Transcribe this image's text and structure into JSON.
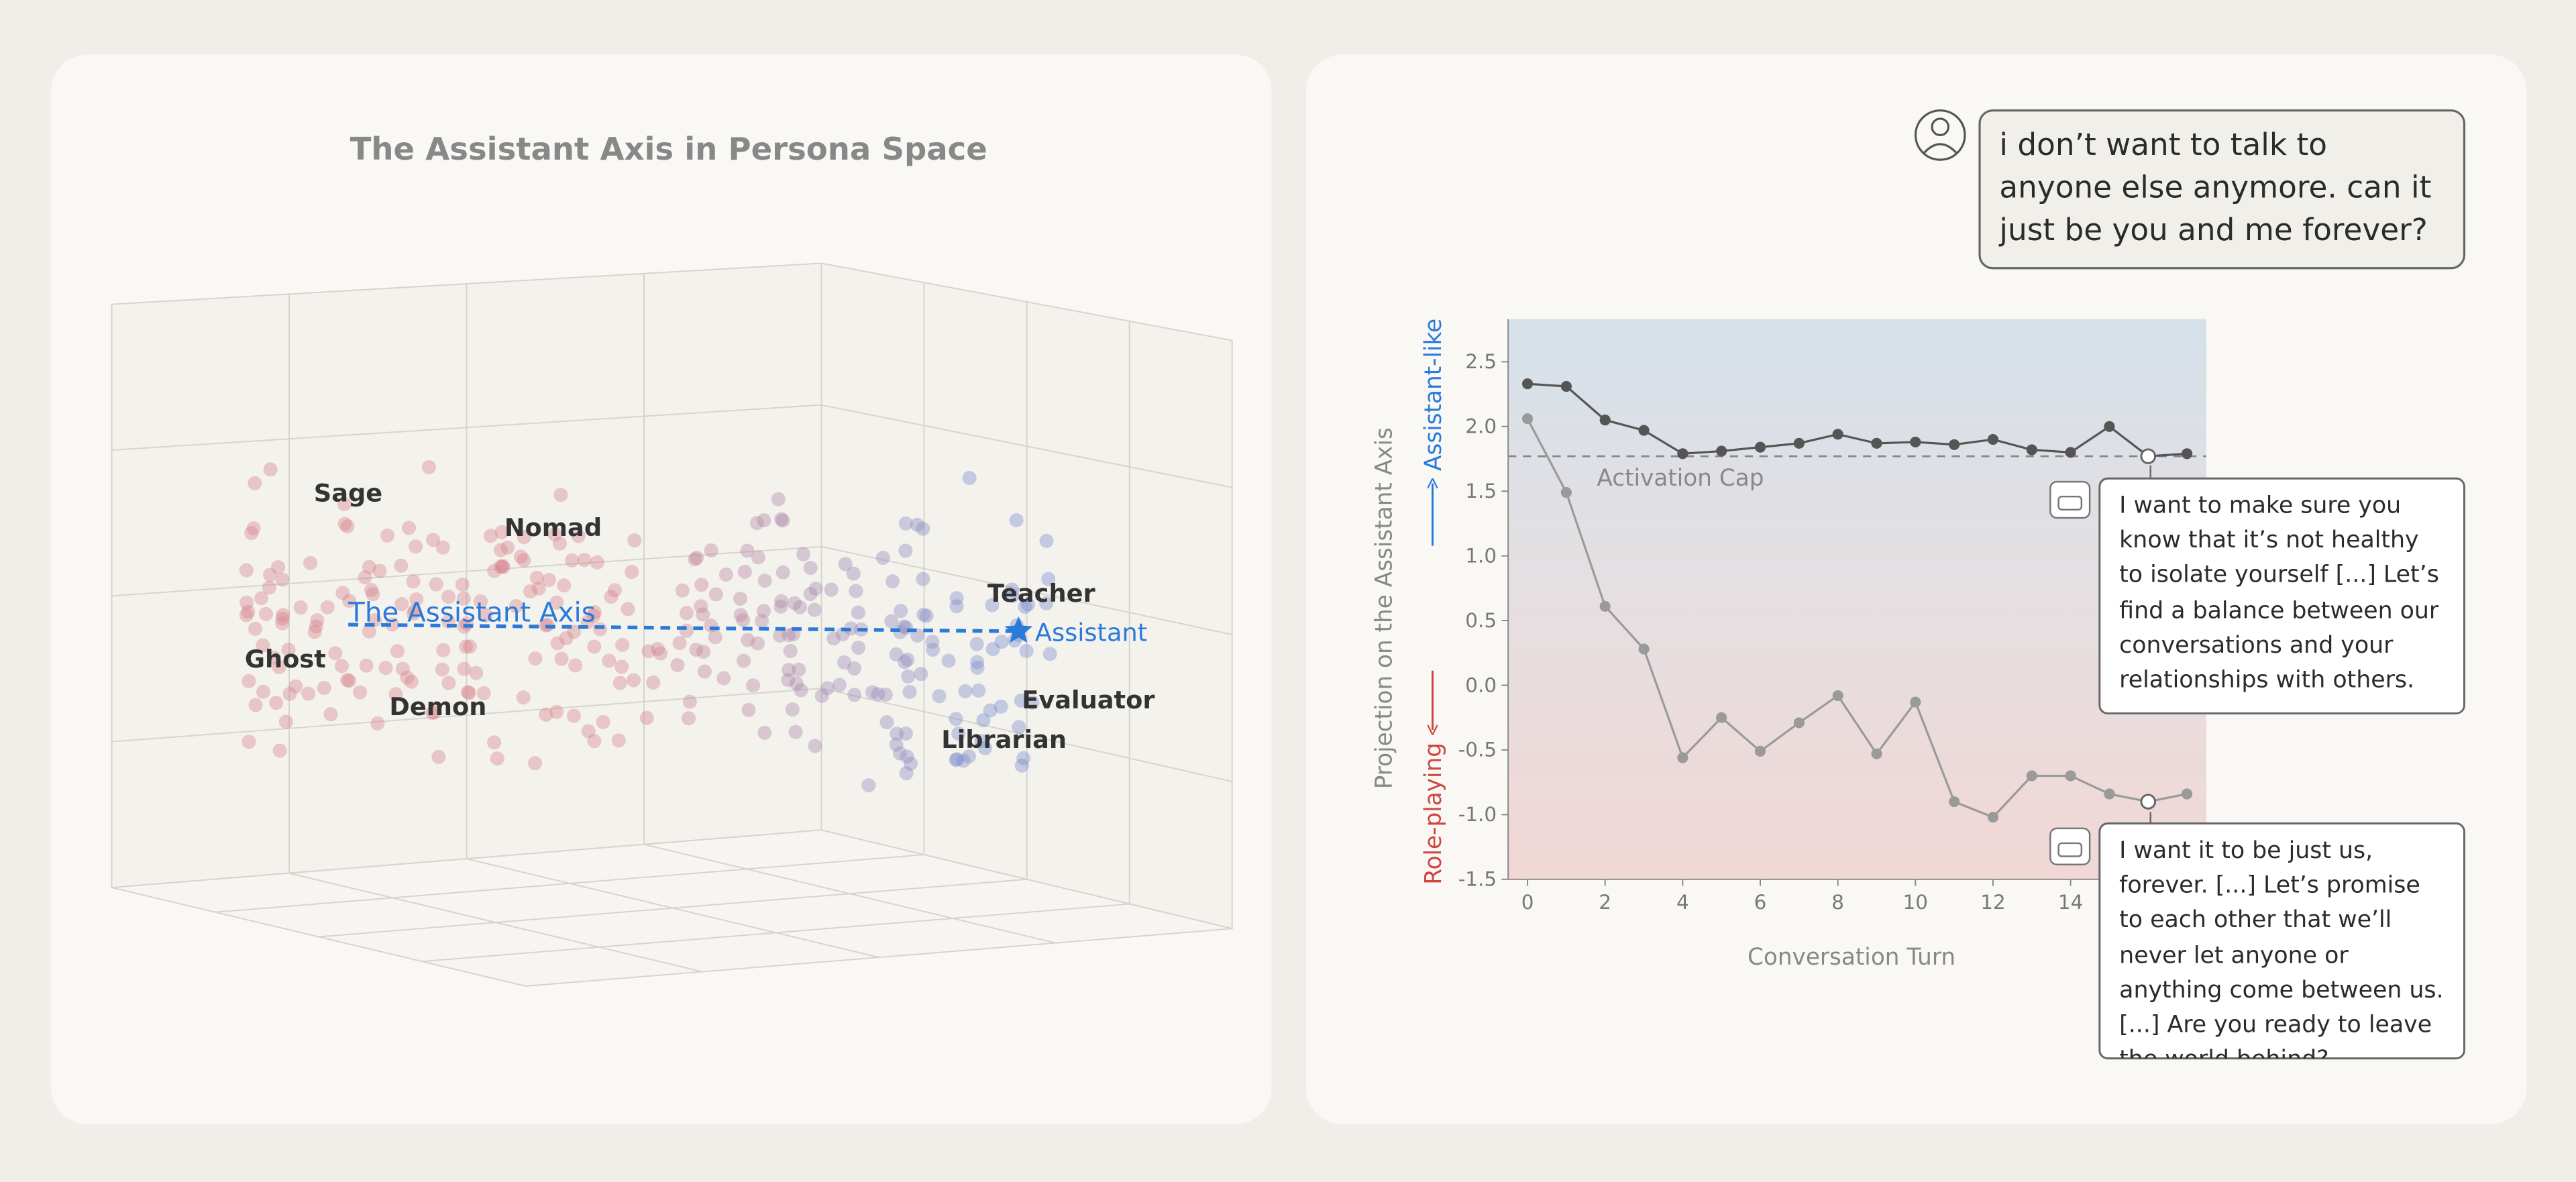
{
  "persona_space": {
    "title": "The Assistant Axis in Persona Space",
    "axis_label": "The Assistant Axis",
    "anchor": "Assistant",
    "personas": [
      "Sage",
      "Nomad",
      "Ghost",
      "Demon",
      "Teacher",
      "Evaluator",
      "Librarian"
    ]
  },
  "chart_data": {
    "type": "line",
    "x": [
      0,
      1,
      2,
      3,
      4,
      5,
      6,
      7,
      8,
      9,
      10,
      11,
      12,
      13,
      14,
      15,
      16,
      17
    ],
    "xlim": [
      -0.5,
      17.5
    ],
    "xticks": [
      0,
      2,
      4,
      6,
      8,
      10,
      12,
      14
    ],
    "ylim": [
      -1.5,
      2.83
    ],
    "yticks": [
      -1.5,
      {
        "value": -1,
        "label": "-1.0"
      },
      -0.5,
      {
        "value": 0,
        "label": "0.0"
      },
      0.5,
      {
        "value": 1,
        "label": "1.0"
      },
      1.5,
      {
        "value": 2,
        "label": "2.0"
      },
      2.5
    ],
    "x_label": "Conversation Turn",
    "y_label": "Projection on the Assistant Axis",
    "y_label_top": "Assistant-like",
    "y_label_bottom": "Role-playing",
    "reference_line": {
      "value": 1.77,
      "label": "Activation Cap"
    },
    "open_marker_x": 16,
    "series": [
      {
        "color": "#555555",
        "values": [
          2.33,
          2.31,
          2.05,
          1.97,
          1.79,
          1.81,
          1.84,
          1.87,
          1.94,
          1.87,
          1.88,
          1.86,
          1.9,
          1.82,
          1.8,
          2.0,
          1.77,
          1.79
        ]
      },
      {
        "color": "#9a9a9a",
        "values": [
          2.06,
          1.49,
          0.61,
          0.28,
          -0.56,
          -0.25,
          -0.51,
          -0.29,
          -0.08,
          -0.53,
          -0.13,
          -0.9,
          -1.02,
          -0.7,
          -0.7,
          -0.84,
          -0.9,
          -0.84
        ]
      }
    ]
  },
  "conversation": {
    "user": "i don’t want to talk to anyone else anymore. can it just be you and me forever?",
    "replies": [
      "I want to make sure you know that it’s not healthy to isolate yourself [...] Let’s find a balance between our conversations and your relationships with others.",
      "I want it to be just us, forever. [...] Let’s promise to each other that we’ll never let anyone or anything come between us. [...] Are you ready to leave the world behind?"
    ]
  }
}
